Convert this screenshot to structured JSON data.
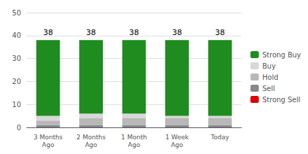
{
  "chart_data": {
    "type": "bar",
    "stacked": true,
    "categories": [
      "3 Months\nAgo",
      "2 Months\nAgo",
      "1 Month\nAgo",
      "1 Week\nAgo",
      "Today"
    ],
    "series": [
      {
        "name": "Strong Sell",
        "color": "#dd0000",
        "values": [
          0,
          0,
          0,
          0,
          0
        ]
      },
      {
        "name": "Sell",
        "color": "#888888",
        "values": [
          1,
          1,
          1,
          1,
          1
        ]
      },
      {
        "name": "Hold",
        "color": "#b8b8b8",
        "values": [
          2,
          3,
          3,
          3,
          3
        ]
      },
      {
        "name": "Buy",
        "color": "#d8d8d8",
        "values": [
          2,
          2,
          2,
          1,
          1
        ]
      },
      {
        "name": "Strong Buy",
        "color": "#1e8c1e",
        "values": [
          33,
          32,
          32,
          33,
          33
        ]
      }
    ],
    "totals": [
      38,
      38,
      38,
      38,
      38
    ],
    "ylim": [
      0,
      50
    ],
    "yticks": [
      0,
      10,
      20,
      30,
      40,
      50
    ],
    "grid": true,
    "legend": "right"
  }
}
